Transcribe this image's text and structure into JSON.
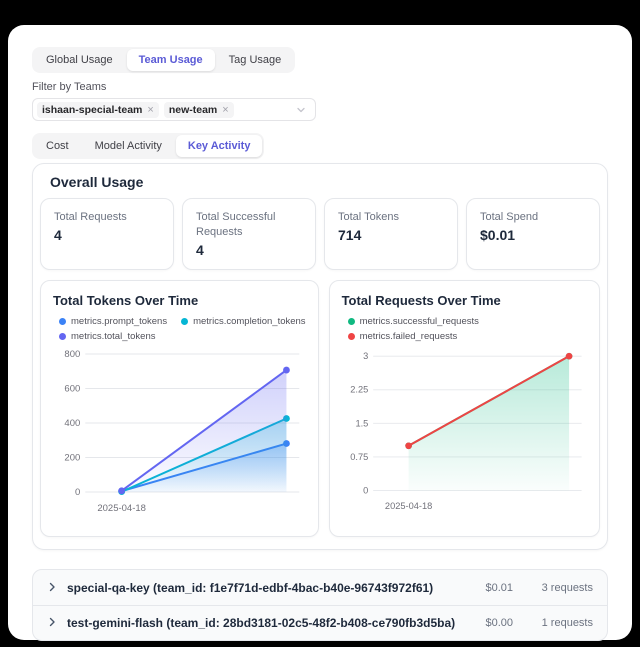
{
  "colors": {
    "accent": "#5b5bd6",
    "grid": "#e5e7eb",
    "axis_text": "#71717a",
    "page_bg": "#000000"
  },
  "tabs_primary": [
    {
      "label": "Global Usage",
      "active": false
    },
    {
      "label": "Team Usage",
      "active": true
    },
    {
      "label": "Tag Usage",
      "active": false
    }
  ],
  "filter": {
    "label": "Filter by Teams",
    "tags": [
      "ishaan-special-team",
      "new-team"
    ],
    "remove_glyph": "×"
  },
  "tabs_secondary": [
    {
      "label": "Cost",
      "active": false
    },
    {
      "label": "Model Activity",
      "active": false
    },
    {
      "label": "Key Activity",
      "active": true
    }
  ],
  "overall_usage": {
    "title": "Overall Usage",
    "stats": [
      {
        "label": "Total Requests",
        "value": "4"
      },
      {
        "label": "Total Successful Requests",
        "value": "4"
      },
      {
        "label": "Total Tokens",
        "value": "714"
      },
      {
        "label": "Total Spend",
        "value": "$0.01"
      }
    ]
  },
  "chart_data": [
    {
      "type": "area",
      "title": "Total Tokens Over Time",
      "x_tick_labels": [
        "2025-04-18"
      ],
      "y_ticks": [
        0,
        200,
        400,
        600,
        800
      ],
      "ylim": [
        0,
        800
      ],
      "grid": true,
      "legend_position": "top",
      "legend_rows": [
        [
          0,
          1
        ],
        [
          2
        ]
      ],
      "series": [
        {
          "name": "metrics.prompt_tokens",
          "color": "#3b82f6",
          "values": [
            5,
            281
          ],
          "area": true
        },
        {
          "name": "metrics.completion_tokens",
          "color": "#06b6d4",
          "values": [
            2,
            426
          ],
          "area": true
        },
        {
          "name": "metrics.total_tokens",
          "color": "#6366f1",
          "values": [
            7,
            707
          ],
          "area": true
        }
      ]
    },
    {
      "type": "area",
      "title": "Total Requests Over Time",
      "x_tick_labels": [
        "2025-04-18"
      ],
      "y_ticks": [
        0,
        0.75,
        1.5,
        2.25,
        3
      ],
      "ylim": [
        0,
        3
      ],
      "grid": true,
      "legend_position": "top",
      "legend_rows": [
        [
          0
        ],
        [
          1
        ]
      ],
      "series": [
        {
          "name": "metrics.successful_requests",
          "color": "#10b981",
          "values": [
            1,
            3
          ],
          "area": true
        },
        {
          "name": "metrics.failed_requests",
          "color": "#ef4444",
          "values": [
            1,
            3
          ],
          "area": false
        }
      ]
    }
  ],
  "keys": [
    {
      "title": "special-qa-key (team_id: f1e7f71d-edbf-4bac-b40e-96743f972f61)",
      "spend": "$0.01",
      "requests": "3 requests"
    },
    {
      "title": "test-gemini-flash (team_id: 28bd3181-02c5-48f2-b408-ce790fb3d5ba)",
      "spend": "$0.00",
      "requests": "1 requests"
    }
  ]
}
